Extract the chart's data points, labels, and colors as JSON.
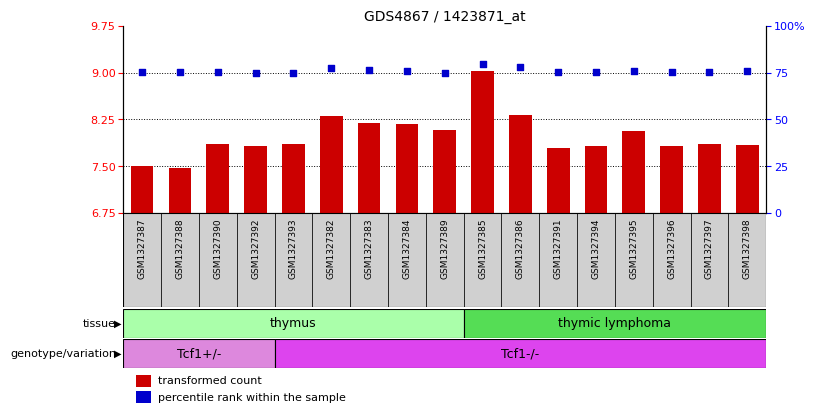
{
  "title": "GDS4867 / 1423871_at",
  "samples": [
    "GSM1327387",
    "GSM1327388",
    "GSM1327390",
    "GSM1327392",
    "GSM1327393",
    "GSM1327382",
    "GSM1327383",
    "GSM1327384",
    "GSM1327389",
    "GSM1327385",
    "GSM1327386",
    "GSM1327391",
    "GSM1327394",
    "GSM1327395",
    "GSM1327396",
    "GSM1327397",
    "GSM1327398"
  ],
  "red_values": [
    7.5,
    7.47,
    7.86,
    7.83,
    7.85,
    8.3,
    8.19,
    8.18,
    8.08,
    9.03,
    8.32,
    7.8,
    7.83,
    8.06,
    7.82,
    7.85,
    7.84
  ],
  "blue_values": [
    9.02,
    9.02,
    9.02,
    8.99,
    9.0,
    9.07,
    9.04,
    9.03,
    9.0,
    9.14,
    9.1,
    9.02,
    9.02,
    9.03,
    9.02,
    9.02,
    9.03
  ],
  "ylim_left": [
    6.75,
    9.75
  ],
  "ylim_right": [
    0,
    100
  ],
  "yticks_left": [
    6.75,
    7.5,
    8.25,
    9.0,
    9.75
  ],
  "yticks_right": [
    0,
    25,
    50,
    75,
    100
  ],
  "hlines": [
    7.5,
    8.25,
    9.0
  ],
  "bar_color": "#cc0000",
  "dot_color": "#0000cc",
  "xtick_bg": "#d0d0d0",
  "thymus_color": "#aaffaa",
  "lymphoma_color": "#55dd55",
  "tcf1pos_color": "#dd88dd",
  "tcf1neg_color": "#dd44ee",
  "thymus_count": 9,
  "lymphoma_count": 8,
  "tcf1pos_count": 4,
  "tcf1neg_count": 13,
  "legend_red_label": "transformed count",
  "legend_blue_label": "percentile rank within the sample"
}
